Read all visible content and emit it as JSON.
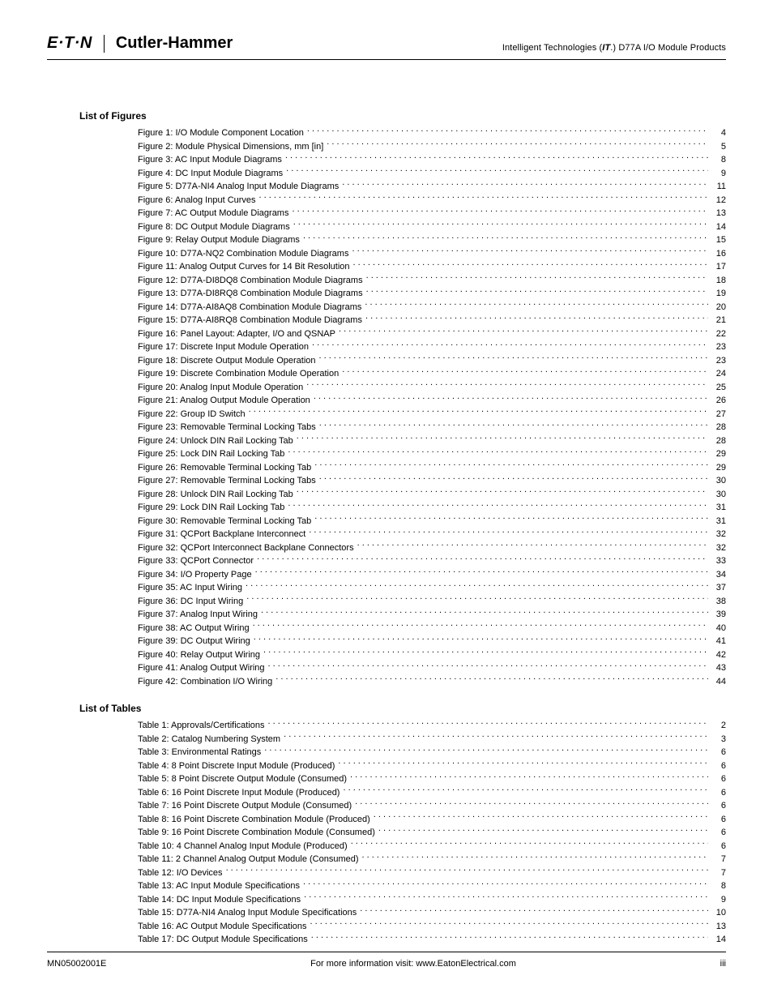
{
  "header": {
    "logo_text": "E·T·N",
    "brand": "Cutler-Hammer",
    "right_prefix": "Intelligent Technologies (",
    "right_it": "IT",
    "right_suffix": ".) D77A I/O Module Products"
  },
  "sections": {
    "figures_title": "List of Figures",
    "tables_title": "List of Tables"
  },
  "figures": [
    {
      "title": "Figure 1: I/O Module Component Location",
      "page": "4"
    },
    {
      "title": "Figure 2: Module Physical Dimensions, mm [in]",
      "page": "5"
    },
    {
      "title": "Figure 3: AC Input Module Diagrams",
      "page": "8"
    },
    {
      "title": "Figure 4: DC Input Module Diagrams",
      "page": "9"
    },
    {
      "title": "Figure 5: D77A-NI4 Analog Input Module Diagrams",
      "page": "11"
    },
    {
      "title": "Figure 6: Analog Input Curves",
      "page": "12"
    },
    {
      "title": "Figure 7: AC Output Module Diagrams",
      "page": "13"
    },
    {
      "title": "Figure 8: DC Output Module Diagrams",
      "page": "14"
    },
    {
      "title": "Figure 9: Relay Output Module Diagrams",
      "page": "15"
    },
    {
      "title": "Figure 10: D77A-NQ2 Combination Module Diagrams",
      "page": "16"
    },
    {
      "title": "Figure 11: Analog Output Curves for 14 Bit Resolution",
      "page": "17"
    },
    {
      "title": "Figure 12: D77A-DI8DQ8 Combination Module Diagrams",
      "page": "18"
    },
    {
      "title": "Figure 13: D77A-DI8RQ8 Combination Module Diagrams",
      "page": "19"
    },
    {
      "title": "Figure 14: D77A-AI8AQ8 Combination Module Diagrams",
      "page": "20"
    },
    {
      "title": "Figure 15: D77A-AI8RQ8 Combination Module Diagrams",
      "page": "21"
    },
    {
      "title": "Figure 16: Panel Layout: Adapter, I/O and QSNAP",
      "page": "22"
    },
    {
      "title": "Figure 17: Discrete Input Module Operation",
      "page": "23"
    },
    {
      "title": "Figure 18: Discrete Output Module Operation",
      "page": "23"
    },
    {
      "title": "Figure 19: Discrete Combination Module Operation",
      "page": "24"
    },
    {
      "title": "Figure 20: Analog Input Module Operation",
      "page": "25"
    },
    {
      "title": "Figure 21: Analog Output Module Operation",
      "page": "26"
    },
    {
      "title": "Figure 22: Group ID Switch",
      "page": "27"
    },
    {
      "title": "Figure 23: Removable Terminal Locking Tabs",
      "page": "28"
    },
    {
      "title": "Figure 24: Unlock DIN Rail Locking Tab",
      "page": "28"
    },
    {
      "title": "Figure 25: Lock DIN Rail Locking Tab",
      "page": "29"
    },
    {
      "title": "Figure 26: Removable Terminal Locking Tab",
      "page": "29"
    },
    {
      "title": "Figure 27: Removable Terminal Locking Tabs",
      "page": "30"
    },
    {
      "title": "Figure 28: Unlock DIN Rail Locking Tab",
      "page": "30"
    },
    {
      "title": "Figure 29: Lock DIN Rail Locking Tab",
      "page": "31"
    },
    {
      "title": "Figure 30: Removable Terminal Locking Tab",
      "page": "31"
    },
    {
      "title": "Figure 31: QCPort Backplane Interconnect",
      "page": "32"
    },
    {
      "title": "Figure 32: QCPort Interconnect Backplane Connectors",
      "page": "32"
    },
    {
      "title": "Figure 33: QCPort Connector",
      "page": "33"
    },
    {
      "title": "Figure 34: I/O Property Page",
      "page": "34"
    },
    {
      "title": "Figure 35: AC Input Wiring",
      "page": "37"
    },
    {
      "title": "Figure 36: DC Input Wiring",
      "page": "38"
    },
    {
      "title": "Figure 37: Analog Input Wiring",
      "page": "39"
    },
    {
      "title": "Figure 38: AC Output Wiring",
      "page": "40"
    },
    {
      "title": "Figure 39: DC Output Wiring",
      "page": "41"
    },
    {
      "title": "Figure 40: Relay Output Wiring",
      "page": "42"
    },
    {
      "title": "Figure 41: Analog Output Wiring",
      "page": "43"
    },
    {
      "title": "Figure 42: Combination I/O Wiring",
      "page": "44"
    }
  ],
  "tables": [
    {
      "title": "Table 1: Approvals/Certifications",
      "page": "2"
    },
    {
      "title": "Table 2: Catalog Numbering System",
      "page": "3"
    },
    {
      "title": "Table 3: Environmental Ratings",
      "page": "6"
    },
    {
      "title": "Table 4: 8 Point Discrete Input Module (Produced)",
      "page": "6"
    },
    {
      "title": "Table 5: 8 Point Discrete Output Module (Consumed)",
      "page": "6"
    },
    {
      "title": "Table 6: 16 Point Discrete Input Module (Produced)",
      "page": "6"
    },
    {
      "title": "Table 7: 16 Point Discrete Output Module (Consumed)",
      "page": "6"
    },
    {
      "title": "Table 8: 16 Point Discrete Combination Module (Produced)",
      "page": "6"
    },
    {
      "title": "Table 9: 16 Point Discrete Combination Module (Consumed)",
      "page": "6"
    },
    {
      "title": "Table 10: 4 Channel Analog Input Module (Produced)",
      "page": "6"
    },
    {
      "title": "Table 11: 2 Channel Analog Output Module (Consumed)",
      "page": "7"
    },
    {
      "title": "Table 12: I/O Devices",
      "page": "7"
    },
    {
      "title": "Table 13: AC Input Module Specifications",
      "page": "8"
    },
    {
      "title": "Table 14: DC Input Module Specifications",
      "page": "9"
    },
    {
      "title": "Table 15: D77A-NI4 Analog Input Module Specifications",
      "page": "10"
    },
    {
      "title": "Table 16: AC Output Module Specifications",
      "page": "13"
    },
    {
      "title": "Table 17: DC Output Module Specifications",
      "page": "14"
    }
  ],
  "footer": {
    "left": "MN05002001E",
    "center": "For more information visit: www.EatonElectrical.com",
    "right": "iii"
  },
  "style": {
    "text_color": "#000000",
    "background_color": "#ffffff",
    "body_fontsize": 11,
    "heading_fontsize": 12,
    "brand_fontsize": 20,
    "line_height": 15.5
  }
}
